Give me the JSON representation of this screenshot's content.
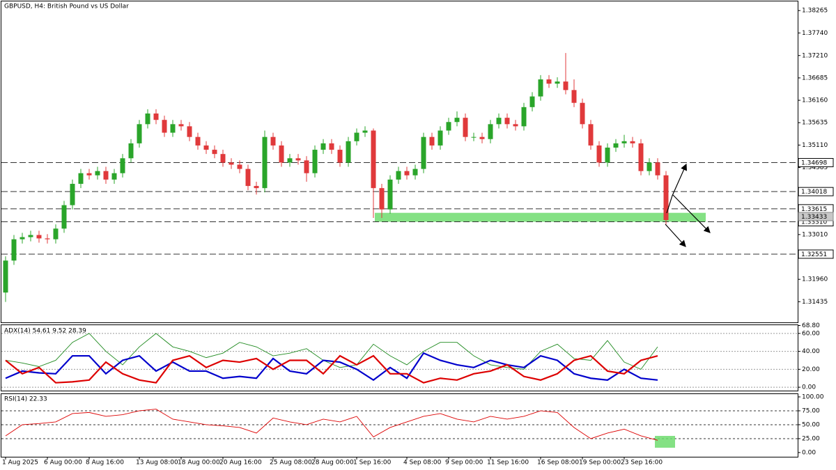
{
  "chart_data": [
    {
      "type": "candlestick",
      "title": "GBPUSD, H4:  British Pound vs US Dollar",
      "categories": [
        "1 Aug 2025",
        null,
        null,
        null,
        null,
        "6 Aug 00:00",
        null,
        null,
        null,
        null,
        "8 Aug 16:00",
        null,
        null,
        null,
        null,
        null,
        "13 Aug 08:00",
        null,
        null,
        null,
        null,
        "18 Aug 00:00",
        null,
        null,
        null,
        null,
        "20 Aug 16:00",
        null,
        null,
        null,
        null,
        null,
        "25 Aug 08:00",
        null,
        null,
        null,
        null,
        "28 Aug 00:00",
        null,
        null,
        null,
        null,
        "1 Sep 16:00",
        null,
        null,
        null,
        null,
        null,
        "4 Sep 08:00",
        null,
        null,
        null,
        null,
        "9 Sep 00:00",
        null,
        null,
        null,
        null,
        "11 Sep 16:00",
        null,
        null,
        null,
        null,
        null,
        "16 Sep 08:00",
        null,
        null,
        null,
        null,
        "19 Sep 00:00",
        null,
        null,
        null,
        null,
        "23 Sep 16:00",
        null,
        null,
        null,
        null,
        null
      ],
      "open": [
        1.3165,
        1.324,
        1.329,
        1.3295,
        1.33,
        1.3292,
        1.329,
        1.3315,
        1.337,
        1.342,
        1.3445,
        1.344,
        1.345,
        1.343,
        1.3445,
        1.348,
        1.3515,
        1.356,
        1.3585,
        1.357,
        1.354,
        1.356,
        1.3555,
        1.353,
        1.351,
        1.35,
        1.349,
        1.347,
        1.3465,
        1.3455,
        1.3415,
        1.341,
        1.353,
        1.351,
        1.347,
        1.348,
        1.3475,
        1.3445,
        1.35,
        1.3515,
        1.35,
        1.347,
        1.352,
        1.354,
        1.3545,
        1.341,
        1.336,
        1.343,
        1.345,
        1.344,
        1.3455,
        1.353,
        1.351,
        1.3545,
        1.3565,
        1.3575,
        1.353,
        1.353,
        1.3525,
        1.356,
        1.3575,
        1.356,
        1.3555,
        1.36,
        1.3625,
        1.3665,
        1.3655,
        1.366,
        1.364,
        1.361,
        1.356,
        1.351,
        1.347,
        1.3505,
        1.3515,
        1.352,
        1.3515,
        1.345,
        1.347,
        1.344
      ],
      "high": [
        1.325,
        1.33,
        1.3305,
        1.331,
        1.331,
        1.3302,
        1.3325,
        1.338,
        1.343,
        1.3455,
        1.3455,
        1.346,
        1.346,
        1.3455,
        1.349,
        1.3525,
        1.357,
        1.3595,
        1.3595,
        1.358,
        1.357,
        1.357,
        1.3565,
        1.354,
        1.352,
        1.351,
        1.35,
        1.348,
        1.3475,
        1.3465,
        1.3425,
        1.3545,
        1.354,
        1.352,
        1.349,
        1.349,
        1.3485,
        1.351,
        1.3525,
        1.3525,
        1.351,
        1.353,
        1.355,
        1.3555,
        1.355,
        1.342,
        1.344,
        1.346,
        1.346,
        1.3465,
        1.354,
        1.354,
        1.3555,
        1.3575,
        1.359,
        1.3585,
        1.354,
        1.354,
        1.357,
        1.3585,
        1.3585,
        1.357,
        1.361,
        1.3635,
        1.3675,
        1.3675,
        1.367,
        1.3727,
        1.3665,
        1.362,
        1.357,
        1.352,
        1.3515,
        1.3525,
        1.3535,
        1.353,
        1.3525,
        1.348,
        1.348,
        1.345
      ],
      "low": [
        1.3143,
        1.323,
        1.328,
        1.3285,
        1.3282,
        1.328,
        1.328,
        1.3305,
        1.336,
        1.341,
        1.343,
        1.343,
        1.342,
        1.342,
        1.3435,
        1.347,
        1.3505,
        1.355,
        1.356,
        1.353,
        1.353,
        1.3545,
        1.352,
        1.35,
        1.349,
        1.348,
        1.346,
        1.3455,
        1.3445,
        1.3405,
        1.3395,
        1.34,
        1.35,
        1.346,
        1.346,
        1.3465,
        1.3425,
        1.3435,
        1.349,
        1.349,
        1.346,
        1.346,
        1.351,
        1.353,
        1.334,
        1.334,
        1.335,
        1.342,
        1.343,
        1.343,
        1.3445,
        1.35,
        1.35,
        1.3535,
        1.3555,
        1.352,
        1.352,
        1.3515,
        1.3515,
        1.355,
        1.355,
        1.3545,
        1.3545,
        1.359,
        1.3615,
        1.3645,
        1.3645,
        1.363,
        1.36,
        1.355,
        1.35,
        1.346,
        1.346,
        1.3495,
        1.3505,
        1.3505,
        1.344,
        1.344,
        1.343,
        1.3325
      ],
      "close": [
        1.324,
        1.329,
        1.3295,
        1.33,
        1.3292,
        1.329,
        1.3315,
        1.337,
        1.342,
        1.3445,
        1.344,
        1.345,
        1.343,
        1.3445,
        1.348,
        1.3515,
        1.356,
        1.3585,
        1.357,
        1.354,
        1.356,
        1.3555,
        1.353,
        1.351,
        1.35,
        1.349,
        1.347,
        1.3465,
        1.3455,
        1.3415,
        1.341,
        1.353,
        1.351,
        1.347,
        1.348,
        1.3475,
        1.3445,
        1.35,
        1.3515,
        1.35,
        1.347,
        1.352,
        1.354,
        1.3545,
        1.341,
        1.336,
        1.343,
        1.345,
        1.344,
        1.3455,
        1.353,
        1.351,
        1.3545,
        1.3565,
        1.3575,
        1.353,
        1.353,
        1.3525,
        1.356,
        1.3575,
        1.356,
        1.3555,
        1.36,
        1.3625,
        1.3665,
        1.3655,
        1.366,
        1.364,
        1.361,
        1.356,
        1.351,
        1.347,
        1.3505,
        1.3515,
        1.352,
        1.3515,
        1.345,
        1.347,
        1.344,
        1.3335
      ],
      "up_color": "#2aa52a",
      "down_color": "#e0393b",
      "ylim": [
        1.3095,
        1.3848
      ],
      "yticks": [
        1.38265,
        {
          "value": 1.3774,
          "label": "1.37740"
        },
        {
          "value": 1.3721,
          "label": "1.37210"
        },
        1.36685,
        {
          "value": 1.3616,
          "label": "1.36160"
        },
        1.35635,
        {
          "value": 1.3511,
          "label": "1.35110"
        },
        1.34585,
        {
          "value": 1.3301,
          "label": "1.33010"
        },
        {
          "value": 1.3196,
          "label": "1.31960"
        },
        1.31435
      ],
      "levels": [
        1.34698,
        1.34018,
        1.33615,
        {
          "value": 1.3331,
          "label": "1.33310"
        },
        1.32551
      ],
      "current_price": 1.33433,
      "zone": [
        1.3331,
        1.3352
      ]
    },
    {
      "type": "line",
      "title": "ADX(14) 54.61 9.52 28.39",
      "x": [
        0,
        2,
        4,
        6,
        8,
        10,
        12,
        14,
        16,
        18,
        20,
        22,
        24,
        26,
        28,
        30,
        32,
        34,
        36,
        38,
        40,
        42,
        44,
        46,
        48,
        50,
        52,
        54,
        56,
        58,
        60,
        62,
        64,
        66,
        68,
        70,
        72,
        74,
        76,
        78
      ],
      "series": [
        {
          "color": "#1f8a1f",
          "values": [
            30,
            27,
            23,
            30,
            50,
            60,
            40,
            25,
            45,
            60,
            45,
            40,
            33,
            38,
            50,
            45,
            35,
            38,
            43,
            30,
            22,
            25,
            48,
            35,
            25,
            40,
            50,
            50,
            35,
            25,
            22,
            20,
            40,
            48,
            32,
            30,
            52,
            28,
            20,
            45
          ]
        },
        {
          "color": "#0000cc",
          "values": [
            10,
            18,
            16,
            15,
            35,
            35,
            15,
            30,
            35,
            18,
            28,
            18,
            18,
            10,
            12,
            10,
            32,
            18,
            15,
            30,
            28,
            20,
            8,
            22,
            10,
            38,
            30,
            25,
            22,
            30,
            25,
            22,
            35,
            30,
            15,
            10,
            8,
            20,
            10,
            8
          ]
        },
        {
          "color": "#dd0000",
          "values": [
            30,
            15,
            22,
            5,
            6,
            8,
            28,
            15,
            8,
            5,
            30,
            35,
            22,
            30,
            28,
            32,
            20,
            30,
            30,
            15,
            35,
            25,
            35,
            15,
            15,
            5,
            10,
            8,
            15,
            18,
            25,
            12,
            8,
            15,
            30,
            35,
            18,
            15,
            30,
            35
          ]
        }
      ],
      "ylim": [
        -3.8,
        69.2
      ],
      "yticks": [
        {
          "value": 68.8,
          "label": "68.80"
        },
        {
          "value": 60,
          "label": "60.00"
        },
        {
          "value": 40,
          "label": "40.00"
        },
        {
          "value": 20,
          "label": "20.00"
        },
        {
          "value": 0,
          "label": "0.00"
        }
      ],
      "grid": true
    },
    {
      "type": "line",
      "title": "RSI(14) 22.33",
      "x": [
        0,
        2,
        4,
        6,
        8,
        10,
        12,
        14,
        16,
        18,
        20,
        22,
        24,
        26,
        28,
        30,
        32,
        34,
        36,
        38,
        40,
        42,
        44,
        46,
        48,
        50,
        52,
        54,
        56,
        58,
        60,
        62,
        64,
        66,
        68,
        70,
        72,
        74,
        76,
        78
      ],
      "series": [
        {
          "color": "#dd0000",
          "values": [
            30,
            50,
            52,
            55,
            70,
            72,
            65,
            68,
            75,
            78,
            60,
            55,
            50,
            48,
            45,
            35,
            62,
            55,
            50,
            60,
            55,
            65,
            28,
            45,
            55,
            65,
            70,
            60,
            55,
            65,
            60,
            65,
            75,
            72,
            45,
            25,
            35,
            42,
            30,
            22
          ]
        }
      ],
      "ylim": [
        -7.6,
        105
      ],
      "yticks": [
        {
          "value": 100,
          "label": "100.00"
        },
        {
          "value": 75,
          "label": "75.00"
        },
        {
          "value": 50,
          "label": "50.00"
        },
        {
          "value": 25,
          "label": "25.00"
        },
        {
          "value": 0,
          "label": "0.00"
        }
      ],
      "levels": [
        75,
        50,
        25
      ]
    }
  ]
}
